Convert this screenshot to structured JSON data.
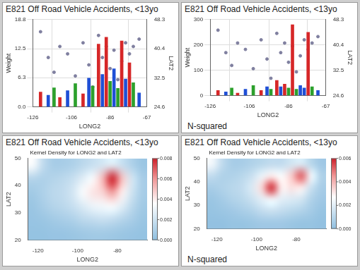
{
  "chart_data": [
    {
      "type": "bar",
      "title": "E821 Off Road Vehicle Accidents, <13yo",
      "x_label": "LONG2",
      "y_label": "Weight",
      "y2_label": "LAT2",
      "x": [
        -122,
        -118,
        -115,
        -112,
        -108,
        -104,
        -100,
        -97,
        -95,
        -92,
        -90,
        -88,
        -86,
        -84,
        -82,
        -80,
        -78,
        -76,
        -74,
        -71
      ],
      "series": [
        {
          "name": "Weight",
          "type": "bar",
          "colors": [
            "#d62728",
            "#1f4fd6",
            "#2ca02c",
            "#d62728",
            "#1f4fd6",
            "#2ca02c",
            "#d62728",
            "#1f4fd6",
            "#2ca02c",
            "#d62728",
            "#1f4fd6",
            "#d62728",
            "#2ca02c",
            "#1f4fd6",
            "#2ca02c",
            "#d62728",
            "#1f4fd6",
            "#d62728",
            "#2ca02c",
            "#1f4fd6"
          ],
          "values": [
            3.2,
            2.5,
            4.1,
            2.0,
            3.5,
            5.0,
            2.8,
            6.2,
            4.5,
            13.5,
            7.0,
            15.0,
            5.5,
            8.2,
            4.0,
            14.2,
            6.0,
            9.5,
            5.2,
            3.0
          ]
        },
        {
          "name": "LAT2",
          "type": "scatter",
          "axis": "y2",
          "color": "#7f7f9f",
          "marker": "circle",
          "values": [
            45,
            38,
            34,
            41,
            39,
            33,
            42,
            36,
            30,
            44,
            38,
            41,
            35,
            40,
            32,
            37,
            42,
            39,
            41,
            43
          ]
        }
      ],
      "xlim": [
        -126,
        -67
      ],
      "xticks": [
        -126,
        -106,
        -86,
        -67
      ],
      "ylim": [
        0,
        18.8
      ],
      "yticks": [
        {
          "value": 0,
          "label": "0.0"
        },
        6.3,
        12.5,
        18.8
      ],
      "y2lim": [
        24.6,
        48.3
      ],
      "y2ticks": [
        24.6,
        32.5,
        40.4,
        48.3
      ],
      "grid": true
    },
    {
      "type": "bar",
      "title": "E821 Off Road Vehicle Accidents, <13yo",
      "annotations": [
        "N-squared"
      ],
      "x_label": "LONG2",
      "y_label": "Weight",
      "y2_label": "LAT2",
      "x": [
        -122,
        -118,
        -115,
        -112,
        -108,
        -104,
        -100,
        -97,
        -95,
        -92,
        -90,
        -88,
        -86,
        -84,
        -82,
        -80,
        -78,
        -76,
        -74,
        -71
      ],
      "series": [
        {
          "name": "Weight",
          "type": "bar",
          "colors": [
            "#d62728",
            "#1f4fd6",
            "#2ca02c",
            "#d62728",
            "#1f4fd6",
            "#2ca02c",
            "#d62728",
            "#1f4fd6",
            "#2ca02c",
            "#d62728",
            "#1f4fd6",
            "#d62728",
            "#2ca02c",
            "#d62728",
            "#2ca02c",
            "#1f4fd6",
            "#1f4fd6",
            "#d62728",
            "#2ca02c",
            "#1f4fd6"
          ],
          "values": [
            20,
            15,
            30,
            10,
            25,
            40,
            20,
            35,
            25,
            60,
            35,
            45,
            30,
            280,
            25,
            40,
            30,
            250,
            35,
            20
          ]
        },
        {
          "name": "LAT2",
          "type": "scatter",
          "axis": "y2",
          "color": "#7f7f9f",
          "marker": "circle",
          "values": [
            45,
            38,
            34,
            41,
            39,
            33,
            42,
            36,
            30,
            44,
            38,
            41,
            35,
            40,
            32,
            37,
            42,
            39,
            41,
            43
          ]
        }
      ],
      "xlim": [
        -126,
        -67
      ],
      "xticks": [
        -126,
        -106,
        -86,
        -67
      ],
      "ylim": [
        0,
        300
      ],
      "yticks": [
        0,
        100,
        200,
        300
      ],
      "y2lim": [
        24.6,
        48.3
      ],
      "y2ticks": [
        24.6,
        32.5,
        40.4,
        48.3
      ],
      "grid": true
    },
    {
      "type": "heatmap",
      "title": "E821 Off Road Vehicle Accidents, <13yo",
      "subtitle": "Kernel Density for LONG2 and LAT2",
      "x_label": "LONG2",
      "y_label": "LAT2",
      "x": [
        -122.5,
        -117.5,
        -112.5,
        -107.5,
        -102.5,
        -97.5,
        -92.5,
        -87.5,
        -82.5,
        -77.5,
        -72.5,
        -67.5
      ],
      "y": [
        22.5,
        27.5,
        32.5,
        37.5,
        42.5,
        47.5
      ],
      "values": [
        [
          0.0002,
          0.0002,
          0.0003,
          0.0003,
          0.0004,
          0.0005,
          0.0006,
          0.0006,
          0.0005,
          0.0004,
          0.0003,
          0.0002
        ],
        [
          0.0003,
          0.0004,
          0.0006,
          0.0008,
          0.001,
          0.0014,
          0.0016,
          0.0018,
          0.0016,
          0.0012,
          0.0008,
          0.0004
        ],
        [
          0.0004,
          0.0008,
          0.0012,
          0.0014,
          0.0018,
          0.0024,
          0.003,
          0.0032,
          0.0034,
          0.0026,
          0.0014,
          0.0006
        ],
        [
          0.0006,
          0.001,
          0.0014,
          0.0016,
          0.0022,
          0.0034,
          0.0042,
          0.0046,
          0.0058,
          0.004,
          0.002,
          0.0008
        ],
        [
          0.0012,
          0.001,
          0.0012,
          0.0014,
          0.0018,
          0.0026,
          0.0034,
          0.0052,
          0.008,
          0.005,
          0.0022,
          0.0008
        ],
        [
          0.0034,
          0.0016,
          0.0008,
          0.0008,
          0.001,
          0.0014,
          0.0018,
          0.0022,
          0.0026,
          0.0018,
          0.001,
          0.0004
        ]
      ],
      "xlim": [
        -125,
        -65
      ],
      "xticks": [
        -120,
        -100,
        -80
      ],
      "ylim": [
        20,
        50
      ],
      "yticks": [
        20,
        30,
        40,
        50
      ],
      "colorbar_lim": [
        0,
        0.008
      ],
      "colorbar_ticks": [
        {
          "value": 0,
          "label": "0.000"
        },
        0.002,
        0.004,
        0.006,
        0.008
      ],
      "grid": false
    },
    {
      "type": "heatmap",
      "title": "E821 Off Road Vehicle Accidents, <13yo",
      "subtitle": "Kernel Density for LONG2 and LAT2",
      "annotations": [
        "N-squared"
      ],
      "x_label": "LONG2",
      "y_label": "LAT2",
      "x": [
        -122.5,
        -117.5,
        -112.5,
        -107.5,
        -102.5,
        -97.5,
        -92.5,
        -87.5,
        -82.5,
        -77.5,
        -72.5,
        -67.5
      ],
      "y": [
        22.5,
        27.5,
        32.5,
        37.5,
        42.5,
        47.5
      ],
      "values": [
        [
          0.0001,
          0.0001,
          0.0002,
          0.0002,
          0.0003,
          0.0004,
          0.0004,
          0.0004,
          0.0003,
          0.0002,
          0.0002,
          0.0001
        ],
        [
          0.0002,
          0.0003,
          0.0004,
          0.0006,
          0.0008,
          0.0012,
          0.0014,
          0.0012,
          0.001,
          0.0008,
          0.0005,
          0.0002
        ],
        [
          0.0003,
          0.0005,
          0.0008,
          0.001,
          0.0014,
          0.002,
          0.0024,
          0.002,
          0.0018,
          0.0016,
          0.0008,
          0.0004
        ],
        [
          0.0006,
          0.0008,
          0.001,
          0.0012,
          0.0018,
          0.0034,
          0.0058,
          0.003,
          0.0032,
          0.003,
          0.0014,
          0.0006
        ],
        [
          0.0012,
          0.0008,
          0.0008,
          0.001,
          0.0014,
          0.0022,
          0.003,
          0.0026,
          0.0036,
          0.0052,
          0.0024,
          0.0008
        ],
        [
          0.0024,
          0.0012,
          0.0006,
          0.0006,
          0.0008,
          0.001,
          0.0012,
          0.0012,
          0.0016,
          0.0018,
          0.001,
          0.0004
        ]
      ],
      "xlim": [
        -125,
        -65
      ],
      "xticks": [
        -120,
        -100,
        -80
      ],
      "ylim": [
        20,
        50
      ],
      "yticks": [
        20,
        30,
        40,
        50
      ],
      "colorbar_lim": [
        0,
        0.006
      ],
      "colorbar_ticks": [
        {
          "value": 0,
          "label": "0.000"
        },
        0.002,
        0.004,
        0.006
      ],
      "grid": false
    }
  ]
}
